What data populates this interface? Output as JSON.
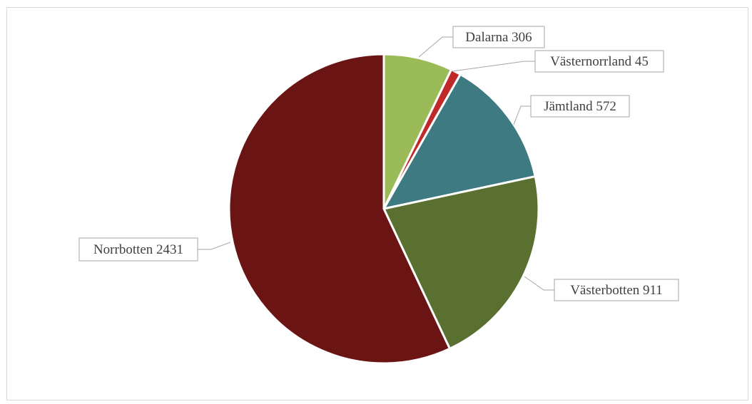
{
  "chart_data": {
    "type": "pie",
    "title": "",
    "slices": [
      {
        "name": "Dalarna",
        "value": 306,
        "label": "Dalarna 306",
        "color": "#9bbb59"
      },
      {
        "name": "Västernorrland",
        "value": 45,
        "label": "Västernorrland 45",
        "color": "#c0282a"
      },
      {
        "name": "Jämtland",
        "value": 572,
        "label": "Jämtland 572",
        "color": "#3e7a82"
      },
      {
        "name": "Västerbotten",
        "value": 911,
        "label": "Västerbotten 911",
        "color": "#5a7031"
      },
      {
        "name": "Norrbotten",
        "value": 2431,
        "label": "Norrbotten 2431",
        "color": "#6b1414"
      }
    ],
    "start_angle": "12 o'clock",
    "direction": "clockwise",
    "legend": "none",
    "data_labels": "outside with leader lines"
  }
}
